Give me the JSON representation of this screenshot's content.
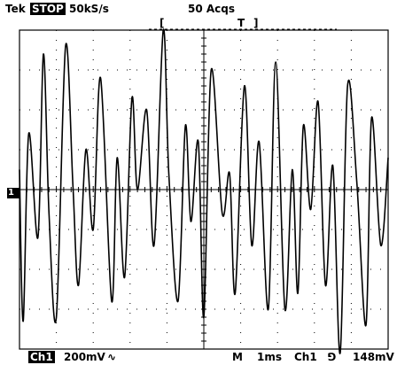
{
  "header": {
    "brand": "Tek",
    "run_state": "STOP",
    "sample_rate": "50kS/s",
    "acquisitions": "50 Acqs",
    "trigger_bracket_left": "[",
    "trigger_marker": "T",
    "trigger_bracket_right": "]"
  },
  "left_marker": {
    "channel_ground": "1"
  },
  "footer": {
    "channel": "Ch1",
    "volts_div": "200mV",
    "coupling_symbol": "∿",
    "mode": "M",
    "time_div": "1ms",
    "trigger_source": "Ch1",
    "trigger_slope": "⅁",
    "trigger_level": "148mV"
  },
  "chart_data": {
    "type": "line",
    "title": "",
    "xlabel": "",
    "ylabel": "",
    "x_divisions": 10,
    "y_divisions": 8,
    "grid": true,
    "ylim": [
      -4,
      4
    ],
    "series": [
      {
        "name": "",
        "x": [
          0.0,
          0.1,
          0.25,
          0.5,
          0.65,
          0.8,
          1.0,
          1.25,
          1.45,
          1.6,
          1.8,
          2.0,
          2.2,
          2.5,
          2.65,
          2.85,
          3.05,
          3.2,
          3.45,
          3.65,
          3.9,
          4.05,
          4.3,
          4.5,
          4.65,
          4.85,
          5.0,
          5.2,
          5.5,
          5.7,
          5.85,
          6.1,
          6.3,
          6.5,
          6.75,
          6.95,
          7.2,
          7.4,
          7.55,
          7.7,
          7.9,
          8.1,
          8.3,
          8.5,
          8.7,
          8.9,
          9.15,
          9.4,
          9.55,
          9.8,
          10.0
        ],
        "y": [
          0.5,
          -3.3,
          1.4,
          -1.2,
          3.4,
          -0.6,
          -3.2,
          3.6,
          0.1,
          -2.4,
          1.0,
          -1.0,
          2.8,
          -2.8,
          0.8,
          -2.2,
          2.3,
          0.0,
          2.0,
          -1.4,
          4.0,
          0.4,
          -2.8,
          1.6,
          -0.8,
          1.2,
          -3.2,
          3.0,
          -0.6,
          0.4,
          -2.6,
          2.6,
          -1.4,
          1.2,
          -3.0,
          3.2,
          -3.0,
          0.5,
          -2.6,
          1.6,
          -0.5,
          2.2,
          -2.4,
          0.6,
          -4.1,
          2.6,
          0.2,
          -3.4,
          1.8,
          -1.4,
          0.8
        ]
      }
    ]
  }
}
